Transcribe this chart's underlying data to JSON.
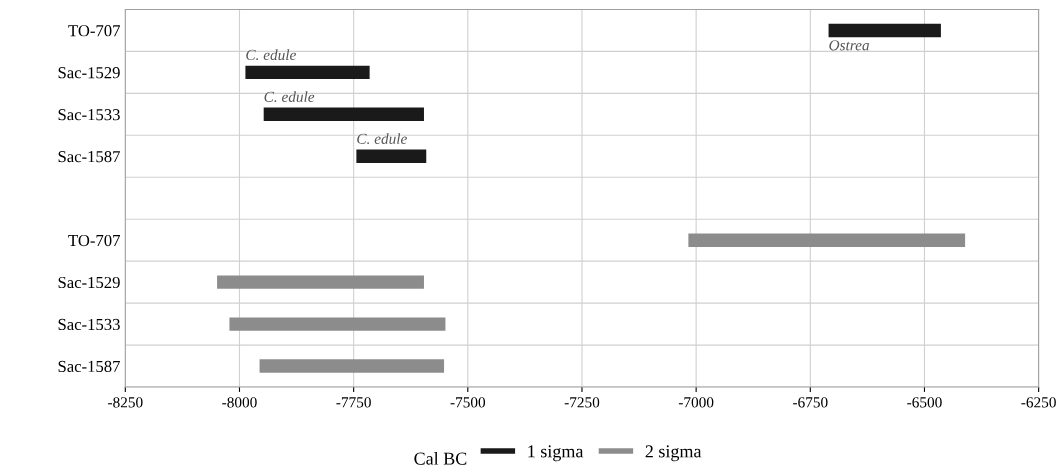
{
  "chart_data": {
    "type": "bar",
    "orientation": "horizontal",
    "xlabel": "Cal BC",
    "categories": [
      "TO-707",
      "Sac-1529",
      "Sac-1533",
      "Sac-1587",
      null,
      "TO-707",
      "Sac-1529",
      "Sac-1533",
      "Sac-1587"
    ],
    "series": [
      {
        "name": "1 sigma",
        "color": "#1a1a1a",
        "base": [
          -6710,
          -7987,
          -7947,
          -7744,
          null,
          null,
          null,
          null,
          null
        ],
        "values": [
          246,
          272,
          351,
          153,
          null,
          null,
          null,
          null,
          null
        ]
      },
      {
        "name": "2 sigma",
        "color": "#8c8c8c",
        "base": [
          null,
          null,
          null,
          null,
          null,
          -7017,
          -8049,
          -8022,
          -7956
        ],
        "values": [
          null,
          null,
          null,
          null,
          null,
          606,
          453,
          473,
          404
        ]
      }
    ],
    "xlim": [
      -8250,
      -6250
    ],
    "xticks": [
      -8250,
      -8000,
      -7750,
      -7500,
      -7250,
      -7000,
      -6750,
      -6500,
      -6250
    ],
    "annotations": [
      {
        "text": "C. edule",
        "x": -7987,
        "y": "Sac-1529"
      },
      {
        "text": "C. edule",
        "x": -7947,
        "y": "Sac-1533"
      },
      {
        "text": "C. edule",
        "x": -7744,
        "y": "Sac-1587"
      },
      {
        "text": "Ostrea",
        "x": -6710,
        "y": "TO-707"
      }
    ],
    "grid": true,
    "legend": "bottom"
  }
}
